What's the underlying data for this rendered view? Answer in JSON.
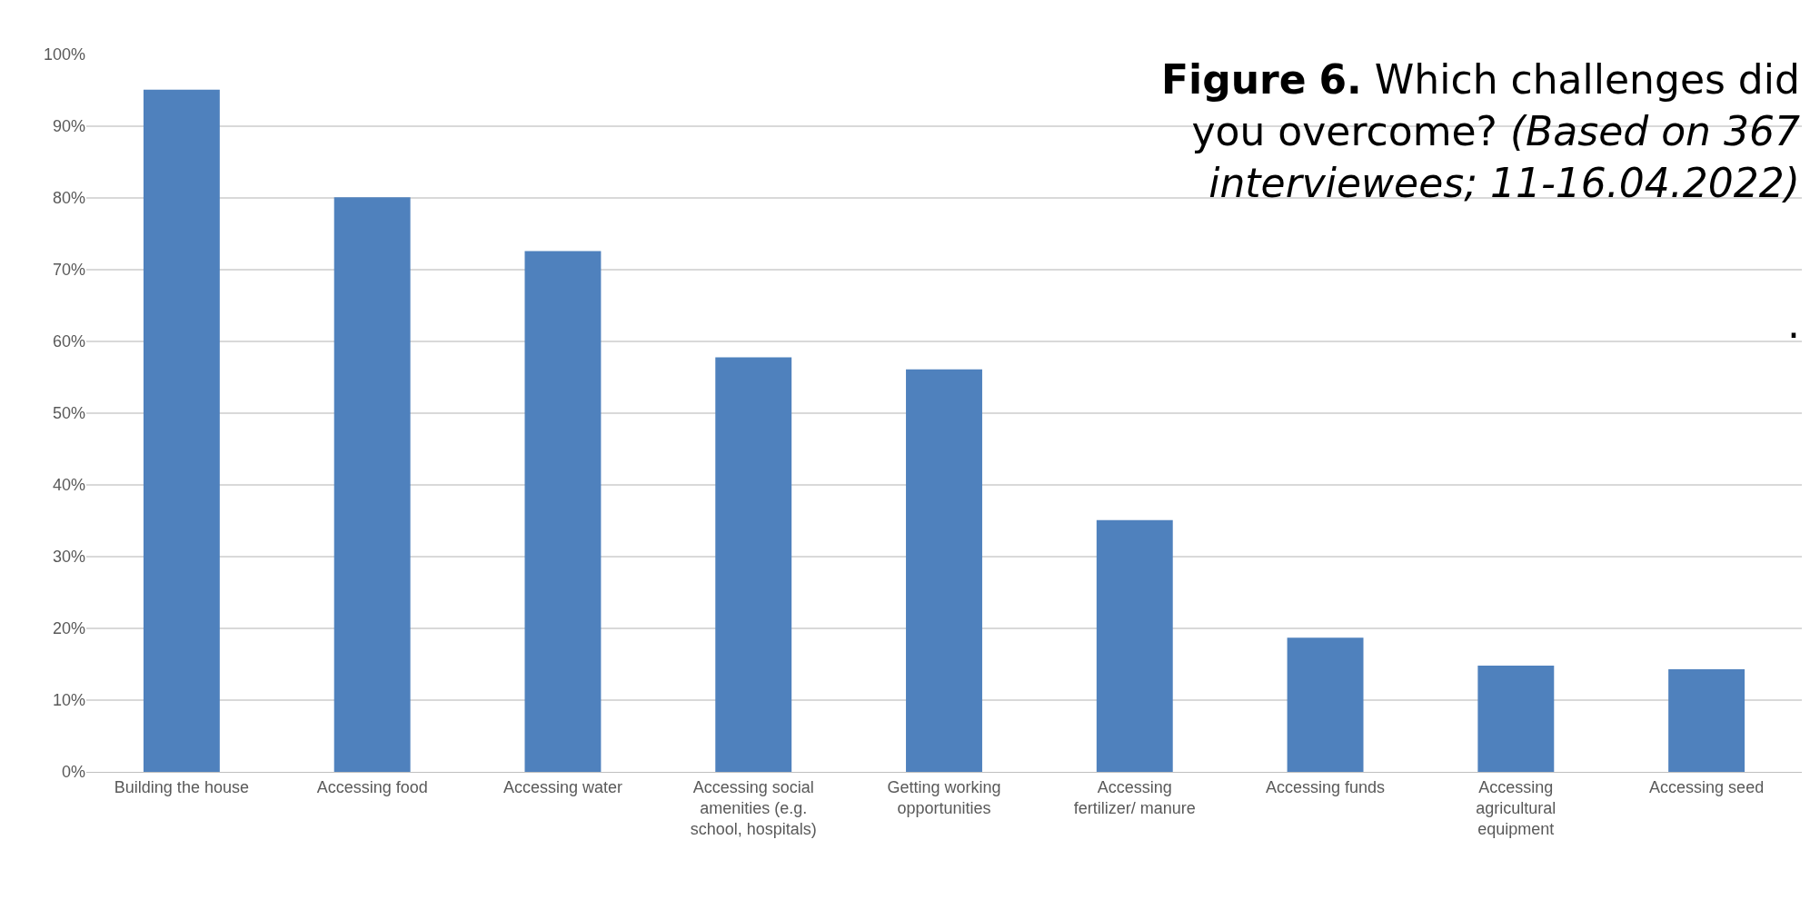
{
  "chart_data": {
    "type": "bar",
    "title": "Figure 6.",
    "subtitle": "Which challenges did you overcome? (Based on 367 interviewees; 11-16.04.2022)",
    "annotations": [
      "."
    ],
    "categories": [
      "Building the house",
      "Accessing food",
      "Accessing water",
      "Accessing social amenities (e.g. school, hospitals)",
      "Getting working opportunities",
      "Accessing fertilizer/ manure",
      "Accessing funds",
      "Accessing agricultural equipment",
      "Accessing seed"
    ],
    "values": [
      95.1,
      80.1,
      72.6,
      57.8,
      56.1,
      35.1,
      18.7,
      14.8,
      14.3
    ],
    "color": "#4f81bd",
    "ylim": [
      0,
      100
    ],
    "yticks": [
      {
        "value": 0,
        "label": "0%"
      },
      {
        "value": 10,
        "label": "10%"
      },
      {
        "value": 20,
        "label": "20%"
      },
      {
        "value": 30,
        "label": "30%"
      },
      {
        "value": 40,
        "label": "40%"
      },
      {
        "value": 50,
        "label": "50%"
      },
      {
        "value": 60,
        "label": "60%"
      },
      {
        "value": 70,
        "label": "70%"
      },
      {
        "value": 80,
        "label": "80%"
      },
      {
        "value": 90,
        "label": "90%"
      },
      {
        "value": 100,
        "label": "100%"
      }
    ],
    "grid": "y",
    "legend": false
  }
}
